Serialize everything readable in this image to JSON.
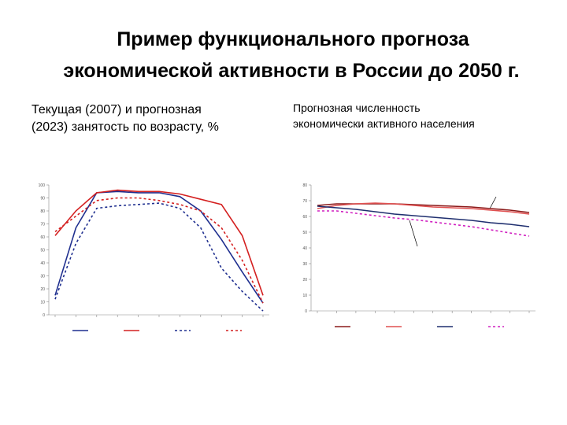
{
  "header": {
    "title": [
      "Пример функционального прогноза",
      "экономической активности в России до 2050 г."
    ]
  },
  "chart_data": [
    {
      "type": "line",
      "title": [
        "Текущая (2007) и прогнозная",
        "(2023) занятость по возрасту, %"
      ],
      "categories": [
        null,
        null,
        null,
        null,
        null,
        null,
        null,
        null,
        null,
        null,
        null
      ],
      "ylim": [
        0,
        100
      ],
      "yticks": [
        0,
        10,
        20,
        30,
        40,
        50,
        60,
        70,
        80,
        90,
        100
      ],
      "series": [
        {
          "color": "#1f2f8f",
          "dash": false,
          "values": [
            15,
            67,
            94,
            95,
            94,
            94,
            91,
            80,
            58,
            33,
            9
          ]
        },
        {
          "color": "#d42020",
          "dash": false,
          "values": [
            61,
            80,
            94,
            96,
            95,
            95,
            93,
            89,
            85,
            61,
            15
          ]
        },
        {
          "color": "#1f2f8f",
          "dash": true,
          "values": [
            12,
            55,
            82,
            84,
            85,
            86,
            82,
            67,
            36,
            18,
            3
          ]
        },
        {
          "color": "#d42020",
          "dash": true,
          "values": [
            64,
            76,
            88,
            90,
            90,
            88,
            85,
            80,
            67,
            42,
            9
          ]
        }
      ]
    },
    {
      "type": "line",
      "title": [
        "Прогнозная численность",
        "экономически активного населения"
      ],
      "categories": [
        null,
        null,
        null,
        null,
        null,
        null,
        null,
        null,
        null,
        null,
        null,
        null
      ],
      "ylim": [
        0,
        80
      ],
      "yticks": [
        0,
        10,
        20,
        30,
        40,
        50,
        60,
        70,
        80
      ],
      "series": [
        {
          "color": "#8b1a1a",
          "dash": false,
          "values": [
            67,
            68,
            68,
            68,
            68,
            67.5,
            67,
            66.5,
            66,
            65,
            64,
            62.5
          ]
        },
        {
          "color": "#e05050",
          "dash": false,
          "values": [
            65,
            67,
            68,
            68.5,
            68,
            67,
            66,
            65.5,
            65,
            64,
            63,
            61.5
          ]
        },
        {
          "color": "#1f2f6f",
          "dash": false,
          "values": [
            66.5,
            65.5,
            64.5,
            63,
            61.5,
            60.5,
            59.5,
            58.5,
            57.5,
            56,
            55,
            53.5
          ]
        },
        {
          "color": "#d020c0",
          "dash": true,
          "values": [
            63.5,
            63.5,
            62,
            60.5,
            59,
            58,
            56.5,
            55,
            53.5,
            51.5,
            49.5,
            47.5
          ]
        }
      ]
    }
  ]
}
